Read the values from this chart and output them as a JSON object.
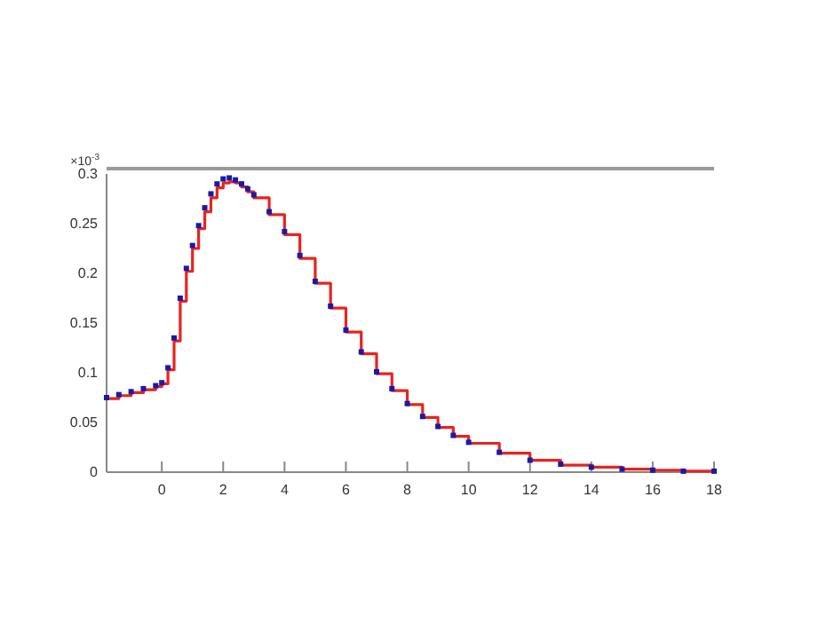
{
  "chart_data": {
    "type": "step",
    "x": [
      -1.8,
      -1.4,
      -1.0,
      -0.6,
      -0.2,
      0,
      0.2,
      0.4,
      0.6,
      0.8,
      1.0,
      1.2,
      1.4,
      1.6,
      1.8,
      2.0,
      2.2,
      2.4,
      2.6,
      2.8,
      3.0,
      3.5,
      4,
      4.5,
      5,
      5.5,
      6,
      6.5,
      7,
      7.5,
      8,
      8.5,
      9,
      9.5,
      10,
      11,
      12,
      13,
      14,
      15,
      16,
      17,
      18
    ],
    "series": [
      {
        "type": "scatter",
        "marker": "square",
        "color": "#1a1aa6",
        "values": [
          0.075,
          0.078,
          0.081,
          0.084,
          0.087,
          0.09,
          0.105,
          0.135,
          0.175,
          0.205,
          0.228,
          0.248,
          0.266,
          0.28,
          0.29,
          0.295,
          0.296,
          0.294,
          0.29,
          0.285,
          0.279,
          0.262,
          0.242,
          0.218,
          0.192,
          0.167,
          0.143,
          0.121,
          0.101,
          0.084,
          0.069,
          0.056,
          0.046,
          0.037,
          0.03,
          0.02,
          0.012,
          0.008,
          0.005,
          0.003,
          0.002,
          0.001,
          0.001
        ]
      },
      {
        "color": "#e8231f",
        "values": [
          0.074,
          0.077,
          0.08,
          0.083,
          0.086,
          0.089,
          0.103,
          0.132,
          0.172,
          0.202,
          0.225,
          0.245,
          0.262,
          0.276,
          0.286,
          0.291,
          0.292,
          0.291,
          0.287,
          0.282,
          0.276,
          0.259,
          0.239,
          0.215,
          0.19,
          0.165,
          0.141,
          0.119,
          0.099,
          0.082,
          0.068,
          0.055,
          0.045,
          0.036,
          0.029,
          0.019,
          0.012,
          0.007,
          0.005,
          0.003,
          0.002,
          0.001,
          0.001
        ]
      }
    ],
    "xlim": [
      -1.8,
      18
    ],
    "xticks": [
      0,
      2,
      4,
      6,
      8,
      10,
      12,
      14,
      16,
      18
    ],
    "ylim": [
      0,
      0.3
    ],
    "yticks": [
      0,
      0.05,
      0.1,
      0.15,
      0.2,
      0.25,
      0.3
    ],
    "annotations": [
      "×10$^{-3}$"
    ],
    "grid": false
  }
}
